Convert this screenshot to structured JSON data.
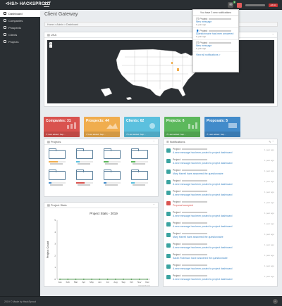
{
  "app": {
    "brand": "<HS/> HACKSPROUT",
    "notification_count": "3",
    "user_badge": "Admin"
  },
  "sidebar": {
    "items": [
      {
        "label": "Dashboard",
        "icon": "dashboard-icon",
        "active": true
      },
      {
        "label": "Companies",
        "icon": "building-icon",
        "active": false
      },
      {
        "label": "Prospects",
        "icon": "target-icon",
        "active": false
      },
      {
        "label": "Clients",
        "icon": "users-icon",
        "active": false
      },
      {
        "label": "Projects",
        "icon": "folder-icon",
        "active": false
      }
    ]
  },
  "page": {
    "title": "Client Gateway",
    "breadcrumb": "Home  >  Admin  >  Dashboard"
  },
  "map_panel": {
    "title": "USA",
    "zoom_in": "+",
    "zoom_out": "−"
  },
  "stats": [
    {
      "label": "Companies: 31",
      "footer": "Last added: Sep...",
      "color": "#d9534f"
    },
    {
      "label": "Prospects: 44",
      "footer": "Last added: Sep...",
      "color": "#f0ad4e"
    },
    {
      "label": "Clients: 62",
      "footer": "Last added: Sep...",
      "color": "#5bc0de"
    },
    {
      "label": "Projects: 6",
      "footer": "Last added: Sep...",
      "color": "#5cb85c"
    },
    {
      "label": "Proposals: 5",
      "footer": "Last added: Sep...",
      "color": "#428bca"
    }
  ],
  "projects_panel": {
    "title": "Projects",
    "progress": [
      {
        "value": 0.55,
        "color": "#f0ad4e"
      },
      {
        "value": 0.2,
        "color": "#5bc0de"
      },
      {
        "value": 0.3,
        "color": "#5cb85c"
      },
      {
        "value": 0.25,
        "color": "#5cb85c"
      },
      {
        "value": 0.15,
        "color": "#428bca"
      },
      {
        "value": 0.5,
        "color": "#d9534f"
      },
      {
        "value": 0.15,
        "color": "#428bca"
      },
      {
        "value": 0.2,
        "color": "#5bc0de"
      }
    ]
  },
  "stats_panel": {
    "title": "Project Stats"
  },
  "chart_data": {
    "type": "line",
    "title": "Project Stats - 2019",
    "ylabel": "Project Count",
    "xlabel": "",
    "categories": [
      "Jan",
      "Feb",
      "Mar",
      "Apr",
      "May",
      "Jun",
      "Jul",
      "Aug",
      "Sep",
      "Oct",
      "Nov",
      "Dec"
    ],
    "series": [
      {
        "values": [
          0,
          0,
          0,
          0,
          0,
          0,
          0,
          0,
          0,
          0,
          0,
          0
        ],
        "color": "#3a8f3a"
      }
    ],
    "ylim": [
      0,
      5
    ],
    "yticks": [
      0,
      1,
      2,
      3,
      4,
      5
    ],
    "grid": false,
    "watermark": "CanvasJS.com"
  },
  "notifications_panel": {
    "title": "Notifications",
    "items": [
      {
        "project": "Project",
        "message": "A new message has been posted to project dashboard",
        "time": "1 year ago",
        "kind": "message"
      },
      {
        "project": "Project",
        "message": "A new message has been posted to project dashboard",
        "time": "1 year ago",
        "kind": "message"
      },
      {
        "project": "Project",
        "message": "Mary Harrell have answered the questionnaire",
        "time": "1 year ago",
        "kind": "message"
      },
      {
        "project": "Project",
        "message": "A new message has been posted to project dashboard",
        "time": "1 year ago",
        "kind": "message"
      },
      {
        "project": "Project",
        "message": "A new message has been posted to project dashboard",
        "time": "1 year ago",
        "kind": "message"
      },
      {
        "project": "Project",
        "message": "Proposal accepted",
        "time": "1 year ago",
        "kind": "alert"
      },
      {
        "project": "Project",
        "message": "A new message has been posted to project dashboard",
        "time": "1 year ago",
        "kind": "message"
      },
      {
        "project": "Project",
        "message": "A new message has been posted to project dashboard",
        "time": "1 year ago",
        "kind": "message"
      },
      {
        "project": "Project",
        "message": "Mary Harrell have answered the questionnaire",
        "time": "1 year ago",
        "kind": "message"
      },
      {
        "project": "Project",
        "message": "A new message has been posted to project dashboard",
        "time": "1 year ago",
        "kind": "message"
      },
      {
        "project": "Project",
        "message": "Sarah Robinson have answered the questionnaire",
        "time": "1 year ago",
        "kind": "message"
      },
      {
        "project": "Project",
        "message": "A new message has been posted to project dashboard",
        "time": "1 year ago",
        "kind": "message"
      },
      {
        "project": "Project",
        "message": "A new message has been posted to project dashboard",
        "time": "1 year ago",
        "kind": "message"
      }
    ]
  },
  "dropdown": {
    "header": "You have 3 new notifications",
    "items": [
      {
        "project": "Project",
        "message": "New message",
        "time": "1 year ago"
      },
      {
        "project": "Project",
        "message": "Questionnaire has been answered",
        "time": "1 year ago"
      },
      {
        "project": "Project",
        "message": "New message",
        "time": "1 year ago"
      }
    ],
    "footer": "View all notifications  >"
  },
  "footer": {
    "text": "2019 © Made by HackSprout",
    "up": "^"
  }
}
